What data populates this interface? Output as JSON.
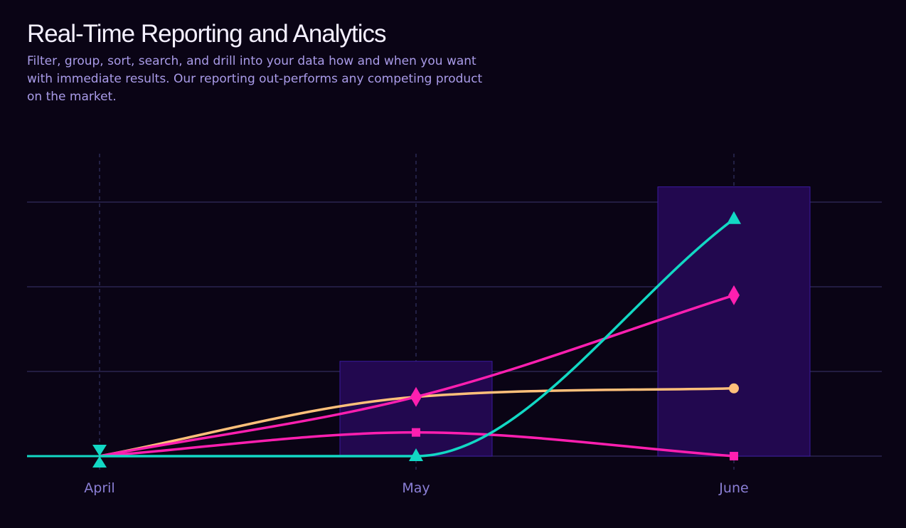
{
  "header": {
    "title": "Real-Time Reporting and Analytics",
    "subtitle": "Filter, group, sort, search, and drill into your data how and when you want with immediate results. Our reporting out-performs any competing product on the market."
  },
  "chart_data": {
    "type": "line",
    "categories": [
      "April",
      "May",
      "June"
    ],
    "ylim": [
      0,
      3
    ],
    "grid": true,
    "bars": {
      "color": "#22084f",
      "border_color": "#3a1a9e",
      "values": [
        0,
        1.12,
        3.18
      ]
    },
    "series": [
      {
        "values": [
          0,
          0.7,
          0.8
        ],
        "color": "#ffc07a",
        "marker": "circle"
      },
      {
        "values": [
          0,
          0.28,
          0
        ],
        "color": "#ff1fb0",
        "marker": "square"
      },
      {
        "values": [
          0,
          0.7,
          1.9
        ],
        "color": "#ff1fb0",
        "marker": "diamond"
      },
      {
        "values": [
          0,
          0,
          2.8
        ],
        "color": "#12d8c4",
        "marker": "triangle"
      }
    ],
    "colors": {
      "grid": "#2a2450",
      "vertical_grid": "#2a2a55",
      "axis_label": "#8b7fd6"
    }
  }
}
